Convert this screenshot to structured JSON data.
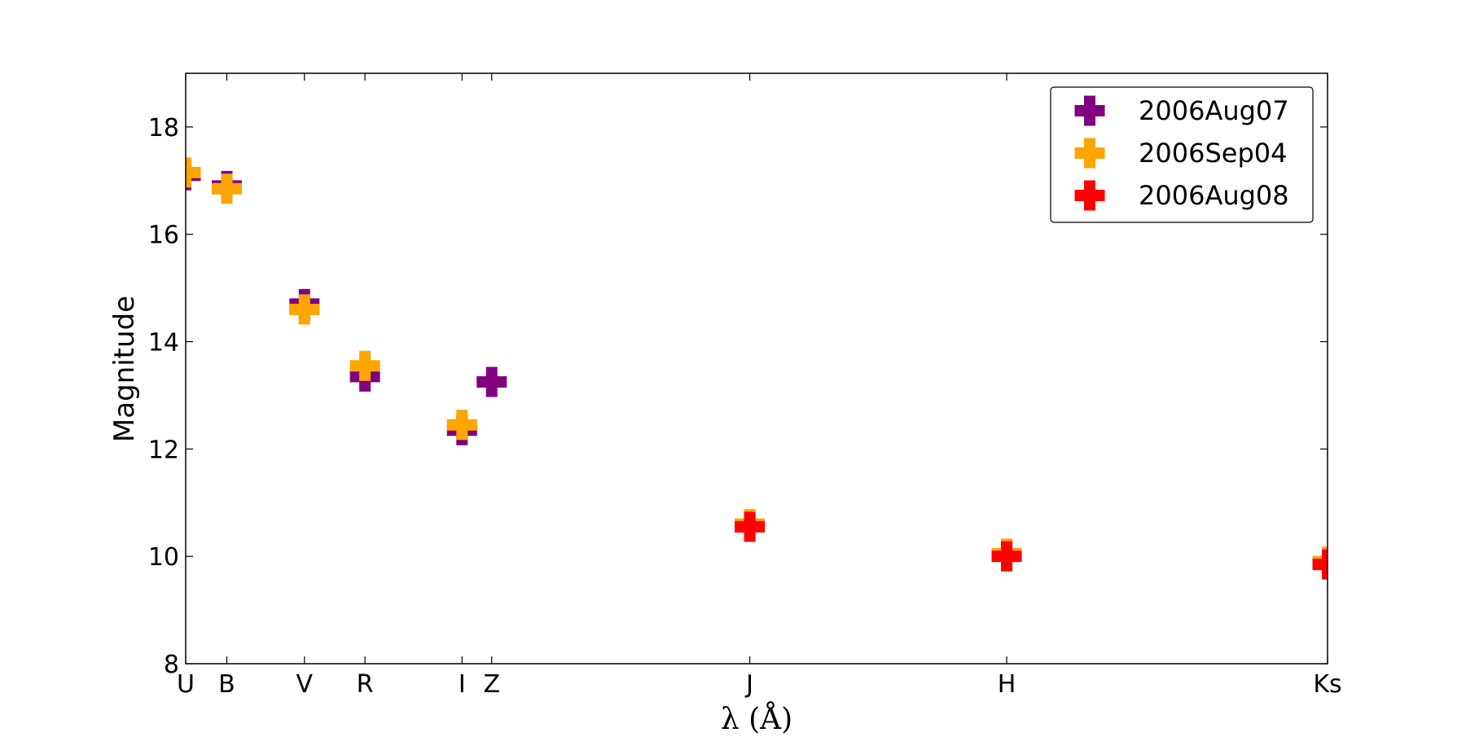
{
  "chart_data": {
    "type": "scatter",
    "title": "",
    "xlabel": "λ (Å)",
    "ylabel": "Magnitude",
    "ylim": [
      8,
      19
    ],
    "yticks": [
      8,
      10,
      12,
      14,
      16,
      18
    ],
    "categories": [
      "U",
      "B",
      "V",
      "R",
      "I",
      "Z",
      "J",
      "H",
      "Ks"
    ],
    "x_positions": [
      0,
      0.036,
      0.104,
      0.157,
      0.242,
      0.268,
      0.494,
      0.719,
      1.0
    ],
    "grid": false,
    "legend_position": "top-right",
    "marker": "plus",
    "series": [
      {
        "name": "2006Aug07",
        "color": "#800080",
        "points": [
          {
            "band": "U",
            "value": 17.1
          },
          {
            "band": "B",
            "value": 16.9
          },
          {
            "band": "V",
            "value": 14.7
          },
          {
            "band": "R",
            "value": 13.35
          },
          {
            "band": "I",
            "value": 12.35
          },
          {
            "band": "Z",
            "value": 13.25
          }
        ]
      },
      {
        "name": "2006Sep04",
        "color": "#FFA500",
        "points": [
          {
            "band": "U",
            "value": 17.15
          },
          {
            "band": "B",
            "value": 16.85
          },
          {
            "band": "V",
            "value": 14.6
          },
          {
            "band": "R",
            "value": 13.55
          },
          {
            "band": "I",
            "value": 12.45
          },
          {
            "band": "J",
            "value": 10.6
          },
          {
            "band": "H",
            "value": 10.05
          },
          {
            "band": "Ks",
            "value": 9.9
          }
        ]
      },
      {
        "name": "2006Aug08",
        "color": "#FF0000",
        "points": [
          {
            "band": "J",
            "value": 10.55
          },
          {
            "band": "H",
            "value": 10.0
          },
          {
            "band": "Ks",
            "value": 9.85
          }
        ]
      }
    ]
  }
}
